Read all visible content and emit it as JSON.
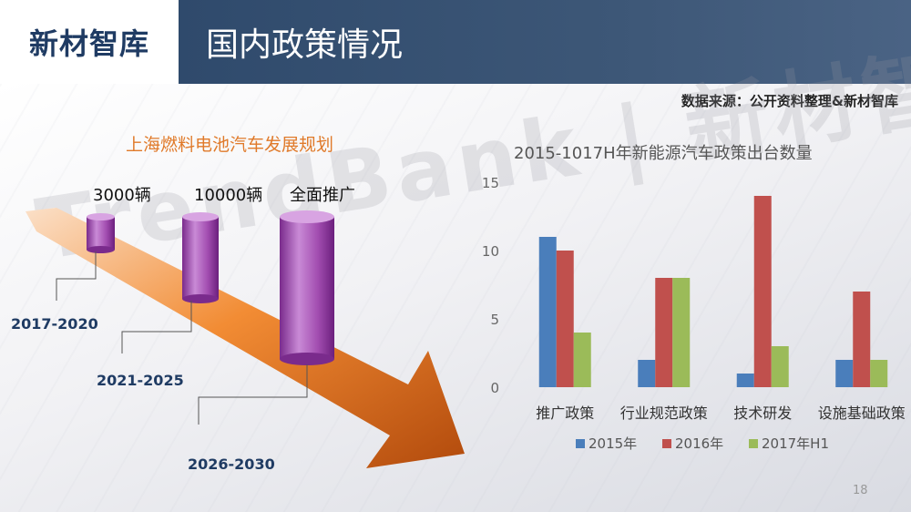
{
  "logo": "新材智库",
  "page_title": "国内政策情况",
  "source": "数据来源：公开资料整理&新材智库",
  "watermark": "TrendBank | 新材智库",
  "plan": {
    "title": "上海燃料电池汽车发展规划",
    "stages": [
      {
        "quantity": "3000辆",
        "period": "2017-2020"
      },
      {
        "quantity": "10000辆",
        "period": "2021-2025"
      },
      {
        "quantity": "全面推广",
        "period": "2026-2030"
      }
    ]
  },
  "chart_data": {
    "type": "bar",
    "title": "2015-1017H年新能源汽车政策出台数量",
    "categories": [
      "推广政策",
      "行业规范政策",
      "技术研发",
      "设施基础政策"
    ],
    "series": [
      {
        "name": "2015年",
        "color": "#4a7ebb",
        "values": [
          11,
          2,
          1,
          2
        ]
      },
      {
        "name": "2016年",
        "color": "#c0504d",
        "values": [
          10,
          8,
          14,
          7
        ]
      },
      {
        "name": "2017年H1",
        "color": "#9bbb59",
        "values": [
          4,
          8,
          3,
          2
        ]
      }
    ],
    "yticks": [
      0,
      5,
      10,
      15
    ],
    "ylim": [
      0,
      15
    ],
    "legend_position": "bottom"
  },
  "page_number": "18",
  "colors": {
    "accent_orange": "#e07a2a",
    "cylinder": "#a24db0",
    "header": "#3d5777"
  }
}
